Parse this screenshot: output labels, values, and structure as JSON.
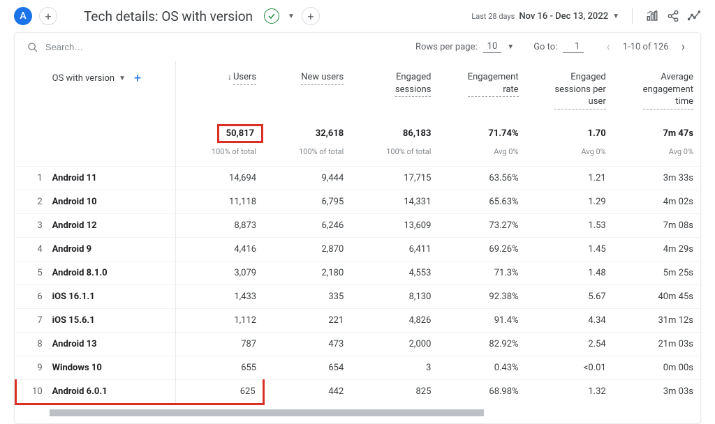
{
  "header": {
    "avatar_letter": "A",
    "title": "Tech details: OS with version",
    "date_label": "Last 28 days",
    "date_value": "Nov 16 - Dec 13, 2022"
  },
  "toolbar": {
    "search_placeholder": "Search…",
    "rows_per_page_label": "Rows per page:",
    "rows_per_page_value": "10",
    "goto_label": "Go to:",
    "goto_value": "1",
    "page_range": "1-10 of 126"
  },
  "table": {
    "dimension_label": "OS with version",
    "columns": [
      {
        "label": "Users",
        "sorted": true
      },
      {
        "label": "New users"
      },
      {
        "label": "Engaged\nsessions"
      },
      {
        "label": "Engagement\nrate"
      },
      {
        "label": "Engaged\nsessions per\nuser"
      },
      {
        "label": "Average\nengagement\ntime"
      }
    ],
    "totals": [
      "50,817",
      "32,618",
      "86,183",
      "71.74%",
      "1.70",
      "7m 47s"
    ],
    "subtotals": [
      "100% of total",
      "100% of total",
      "100% of total",
      "Avg 0%",
      "Avg 0%",
      "Avg 0%"
    ],
    "rows": [
      {
        "idx": "1",
        "dim": "Android 11",
        "v": [
          "14,694",
          "9,444",
          "17,715",
          "63.56%",
          "1.21",
          "3m 33s"
        ]
      },
      {
        "idx": "2",
        "dim": "Android 10",
        "v": [
          "11,118",
          "6,795",
          "14,331",
          "65.63%",
          "1.29",
          "4m 02s"
        ]
      },
      {
        "idx": "3",
        "dim": "Android 12",
        "v": [
          "8,873",
          "6,246",
          "13,609",
          "73.27%",
          "1.53",
          "7m 08s"
        ]
      },
      {
        "idx": "4",
        "dim": "Android 9",
        "v": [
          "4,416",
          "2,870",
          "6,411",
          "69.26%",
          "1.45",
          "4m 29s"
        ]
      },
      {
        "idx": "5",
        "dim": "Android 8.1.0",
        "v": [
          "3,079",
          "2,180",
          "4,553",
          "71.3%",
          "1.48",
          "5m 25s"
        ]
      },
      {
        "idx": "6",
        "dim": "iOS 16.1.1",
        "v": [
          "1,433",
          "335",
          "8,130",
          "92.38%",
          "5.67",
          "40m 45s"
        ]
      },
      {
        "idx": "7",
        "dim": "iOS 15.6.1",
        "v": [
          "1,112",
          "221",
          "4,826",
          "91.4%",
          "4.34",
          "31m 12s"
        ]
      },
      {
        "idx": "8",
        "dim": "Android 13",
        "v": [
          "787",
          "473",
          "2,000",
          "82.92%",
          "2.54",
          "21m 03s"
        ]
      },
      {
        "idx": "9",
        "dim": "Windows 10",
        "v": [
          "655",
          "654",
          "3",
          "0.43%",
          "<0.01",
          "0m 00s"
        ]
      },
      {
        "idx": "10",
        "dim": "Android 6.0.1",
        "v": [
          "625",
          "442",
          "825",
          "68.98%",
          "1.32",
          "3m 03s"
        ]
      }
    ],
    "highlights": {
      "total_cell_col": 0,
      "row_index": 9,
      "row_span_cols": 3
    }
  },
  "colors": {
    "accent_blue": "#1a73e8",
    "highlight_red": "#d93025",
    "text": "#3c4043",
    "muted": "#5f6368"
  }
}
